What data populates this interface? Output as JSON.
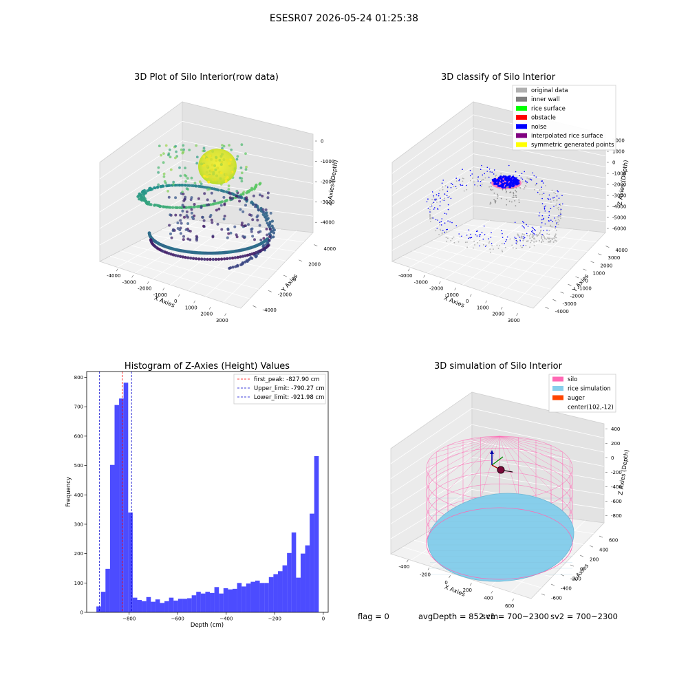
{
  "figure": {
    "suptitle": "ESESR07 2026-05-24 01:25:38",
    "footer": {
      "flag": "flag = 0",
      "avg_depth": "avgDepth = 852 cm",
      "sv1": "sv1 = 700~2300",
      "sv2": "sv2 = 700~2300"
    }
  },
  "chart_data": [
    {
      "panel": "raw-3d",
      "type": "scatter",
      "title": "3D Plot of Silo Interior(row data)",
      "xlabel": "X Axies",
      "ylabel": "Y Axies",
      "zlabel": "Z Axies (Depth)",
      "xticks": [
        -4000,
        -3000,
        -2000,
        -1000,
        0,
        1000,
        2000,
        3000
      ],
      "yticks": [
        -4000,
        -2000,
        0,
        2000,
        4000
      ],
      "zticks": [
        0,
        -1000,
        -2000,
        -3000,
        -4000
      ],
      "xlim": [
        -4500,
        3500
      ],
      "ylim": [
        -4500,
        4500
      ],
      "zlim": [
        -4500,
        0
      ],
      "colormap": "viridis"
    },
    {
      "panel": "classify-3d",
      "type": "scatter",
      "title": "3D classify of Silo Interior",
      "xlabel": "X Axies",
      "ylabel": "Y Axies",
      "zlabel": "Z Axies (Depth)",
      "xticks": [
        -4000,
        -3000,
        -2000,
        -1000,
        0,
        1000,
        2000,
        3000
      ],
      "yticks": [
        -4000,
        -3000,
        -2000,
        -1000,
        0,
        1000,
        2000,
        3000,
        4000
      ],
      "zticks": [
        2000,
        1000,
        0,
        -1000,
        -2000,
        -3000,
        -4000,
        -5000,
        -6000
      ],
      "legend_position": "top-right",
      "legend": [
        {
          "name": "original data",
          "color": "#b0b0b0"
        },
        {
          "name": "inner wall",
          "color": "#808080"
        },
        {
          "name": "rice surface",
          "color": "#00ff00"
        },
        {
          "name": "obstacle",
          "color": "#ff0000"
        },
        {
          "name": "noise",
          "color": "#0000ff"
        },
        {
          "name": "interpolated rice surface",
          "color": "#800080"
        },
        {
          "name": "symmetric generated points",
          "color": "#ffff00"
        }
      ]
    },
    {
      "panel": "histogram",
      "type": "bar",
      "title": "Histogram of Z-Axies (Height) Values",
      "xlabel": "Depth (cm)",
      "ylabel": "Frequency",
      "xlim": [
        -975,
        20
      ],
      "ylim": [
        0,
        820
      ],
      "xticks": [
        -800,
        -600,
        -400,
        -200,
        0
      ],
      "yticks": [
        0,
        100,
        200,
        300,
        400,
        500,
        600,
        700,
        800
      ],
      "bar_color": "#0000ff",
      "bin_start": -935,
      "bin_width": 18.7,
      "values": [
        20,
        70,
        148,
        502,
        706,
        728,
        782,
        340,
        50,
        42,
        38,
        52,
        36,
        44,
        32,
        38,
        50,
        40,
        46,
        46,
        48,
        58,
        70,
        64,
        70,
        66,
        86,
        64,
        82,
        78,
        80,
        100,
        88,
        98,
        104,
        108,
        100,
        100,
        120,
        130,
        140,
        160,
        202,
        272,
        118,
        200,
        228,
        336,
        532
      ],
      "vlines": [
        {
          "name": "first_peak: -827.90 cm",
          "x": -827.9,
          "color": "#ff0000"
        },
        {
          "name": "Upper_limit: -790.27 cm",
          "x": -790.27,
          "color": "#0000cc"
        },
        {
          "name": "Lower_limit: -921.98 cm",
          "x": -921.98,
          "color": "#0000cc"
        }
      ],
      "legend_position": "top-right"
    },
    {
      "panel": "simulation-3d",
      "type": "scatter",
      "title": "3D simulation of Silo Interior",
      "xlabel": "X Axies",
      "ylabel": "Y Axies",
      "zlabel": "Z Axies (Depth)",
      "xticks": [
        -400,
        -200,
        0,
        200,
        400,
        600
      ],
      "yticks": [
        -600,
        -400,
        -200,
        0,
        200,
        400,
        600
      ],
      "zticks": [
        400,
        200,
        0,
        -200,
        -400,
        -600,
        -800
      ],
      "legend_position": "top-right",
      "legend": [
        {
          "name": "silo",
          "color": "#ff69b4"
        },
        {
          "name": "rice simulation",
          "color": "#87ceeb"
        },
        {
          "name": "auger",
          "color": "#ff4500"
        },
        {
          "name": "center(102,-12)",
          "color": ""
        }
      ]
    }
  ]
}
